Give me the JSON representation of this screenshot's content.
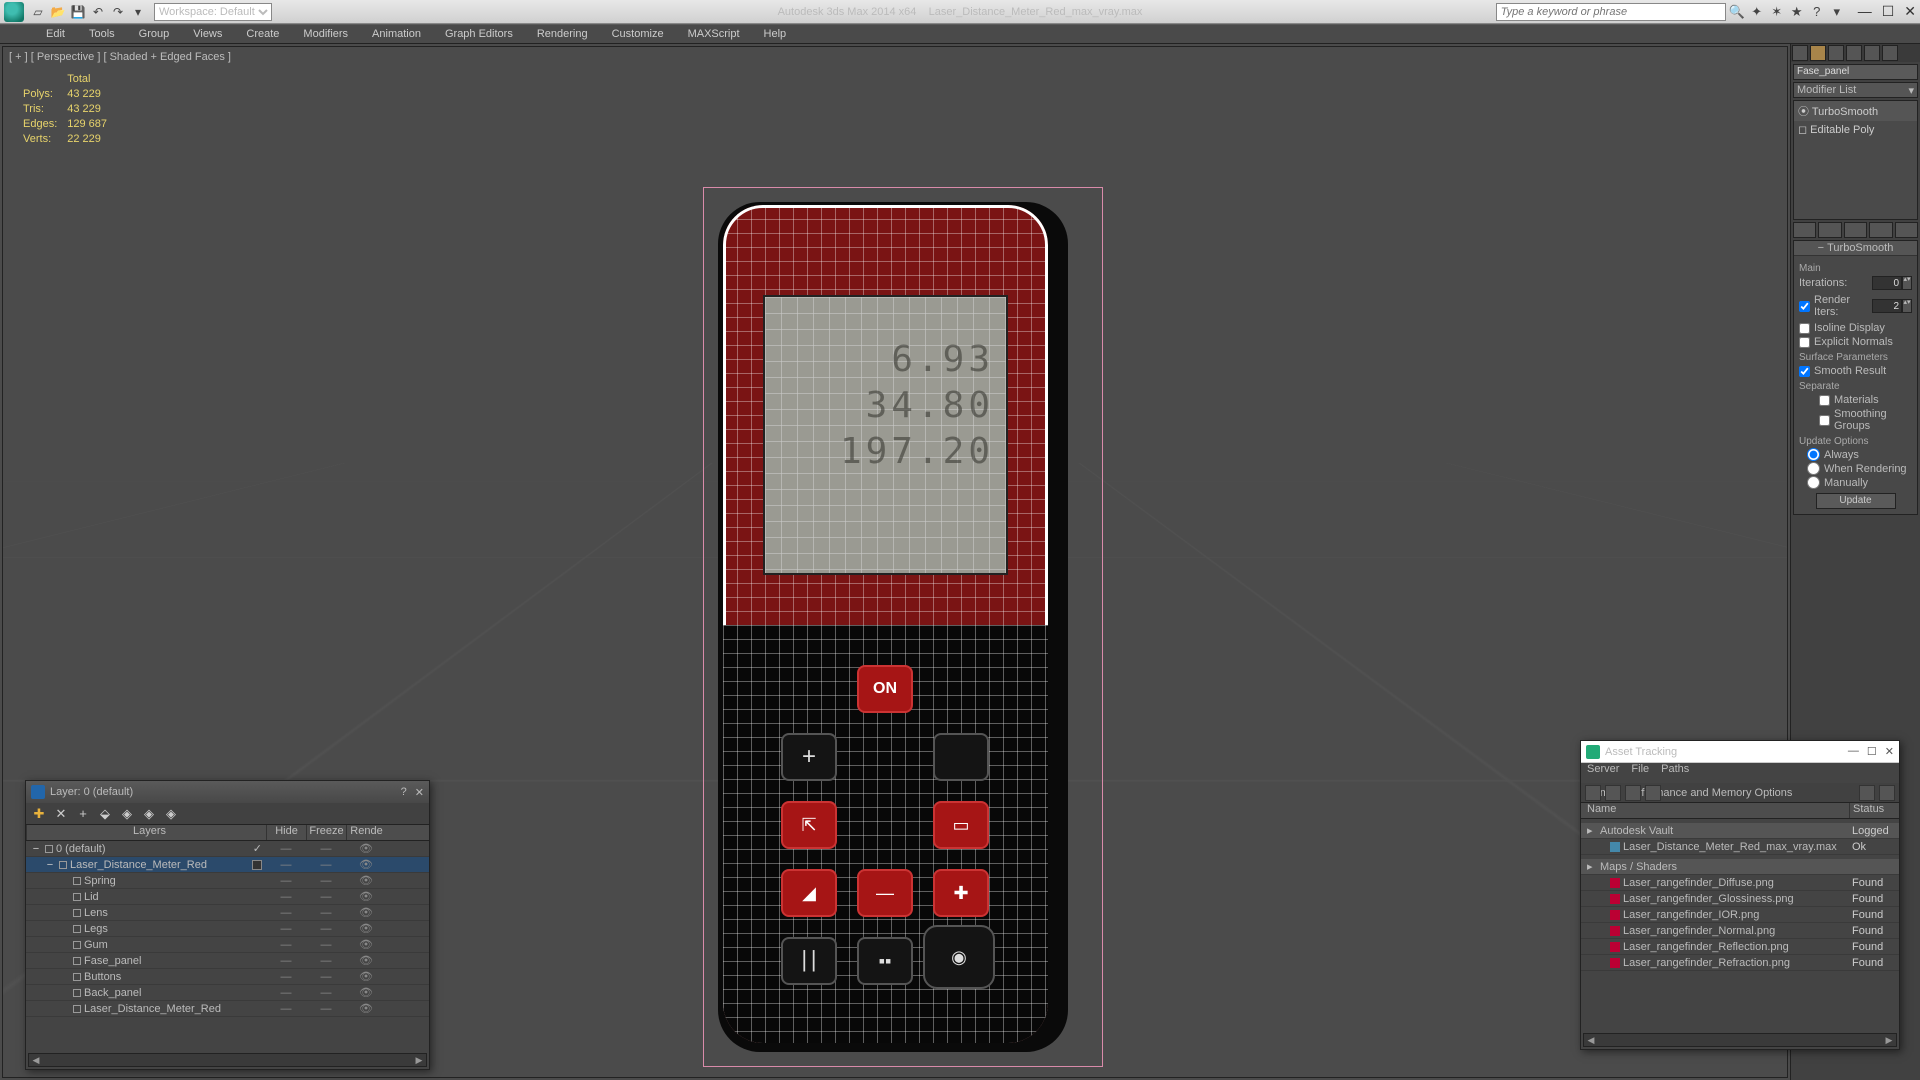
{
  "titlebar": {
    "workspace_label": "Workspace: Default",
    "app": "Autodesk 3ds Max 2014 x64",
    "file": "Laser_Distance_Meter_Red_max_vray.max",
    "search_placeholder": "Type a keyword or phrase"
  },
  "menus": [
    "Edit",
    "Tools",
    "Group",
    "Views",
    "Create",
    "Modifiers",
    "Animation",
    "Graph Editors",
    "Rendering",
    "Customize",
    "MAXScript",
    "Help"
  ],
  "viewport": {
    "label": "[ + ] [ Perspective ] [ Shaded + Edged Faces ]",
    "stats_header": "Total",
    "stats": [
      {
        "k": "Polys:",
        "v": "43 229"
      },
      {
        "k": "Tris:",
        "v": "43 229"
      },
      {
        "k": "Edges:",
        "v": "129 687"
      },
      {
        "k": "Verts:",
        "v": "22 229"
      }
    ],
    "lcd_lines": [
      "6.93",
      "34.80",
      "197.20"
    ]
  },
  "cmd": {
    "obj_name": "Fase_panel",
    "mod_combo": "Modifier List",
    "stack": [
      "⦿   TurboSmooth",
      "◻  Editable Poly"
    ],
    "rollout_title": "TurboSmooth",
    "main_label": "Main",
    "iterations_label": "Iterations:",
    "iterations_val": "0",
    "render_iters_label": "Render Iters:",
    "render_iters_val": "2",
    "isoline": "Isoline Display",
    "explicit": "Explicit Normals",
    "surface": "Surface Parameters",
    "smooth_result": "Smooth Result",
    "separate": "Separate",
    "materials": "Materials",
    "smgroups": "Smoothing Groups",
    "update_opts": "Update Options",
    "always": "Always",
    "when_rendering": "When Rendering",
    "manually": "Manually",
    "update_btn": "Update"
  },
  "layer_dlg": {
    "title": "Layer: 0 (default)",
    "columns": [
      "Layers",
      "Hide",
      "Freeze",
      "Rende"
    ],
    "rows": [
      {
        "indent": 0,
        "exp": "−",
        "name": "0 (default)",
        "sel": false,
        "chk": true
      },
      {
        "indent": 1,
        "exp": "−",
        "name": "Laser_Distance_Meter_Red",
        "sel": true,
        "chk": false,
        "color": true
      },
      {
        "indent": 2,
        "exp": "",
        "name": "Spring",
        "sel": false
      },
      {
        "indent": 2,
        "exp": "",
        "name": "Lid",
        "sel": false
      },
      {
        "indent": 2,
        "exp": "",
        "name": "Lens",
        "sel": false
      },
      {
        "indent": 2,
        "exp": "",
        "name": "Legs",
        "sel": false
      },
      {
        "indent": 2,
        "exp": "",
        "name": "Gum",
        "sel": false
      },
      {
        "indent": 2,
        "exp": "",
        "name": "Fase_panel",
        "sel": false
      },
      {
        "indent": 2,
        "exp": "",
        "name": "Buttons",
        "sel": false
      },
      {
        "indent": 2,
        "exp": "",
        "name": "Back_panel",
        "sel": false
      },
      {
        "indent": 2,
        "exp": "",
        "name": "Laser_Distance_Meter_Red",
        "sel": false
      }
    ]
  },
  "asset_dlg": {
    "title": "Asset Tracking",
    "menus": [
      "Server",
      "File",
      "Paths",
      "Bitmap Performance and Memory Options"
    ],
    "columns": [
      "Name",
      "Status"
    ],
    "rows": [
      {
        "grp": true,
        "name": "Autodesk Vault",
        "status": "Logged"
      },
      {
        "grp": false,
        "icon": "doc",
        "name": "Laser_Distance_Meter_Red_max_vray.max",
        "status": "Ok"
      },
      {
        "grp": true,
        "name": "Maps / Shaders",
        "status": ""
      },
      {
        "grp": false,
        "icon": "img",
        "name": "Laser_rangefinder_Diffuse.png",
        "status": "Found"
      },
      {
        "grp": false,
        "icon": "img",
        "name": "Laser_rangefinder_Glossiness.png",
        "status": "Found"
      },
      {
        "grp": false,
        "icon": "img",
        "name": "Laser_rangefinder_IOR.png",
        "status": "Found"
      },
      {
        "grp": false,
        "icon": "img",
        "name": "Laser_rangefinder_Normal.png",
        "status": "Found"
      },
      {
        "grp": false,
        "icon": "img",
        "name": "Laser_rangefinder_Reflection.png",
        "status": "Found"
      },
      {
        "grp": false,
        "icon": "img",
        "name": "Laser_rangefinder_Refraction.png",
        "status": "Found"
      }
    ]
  }
}
